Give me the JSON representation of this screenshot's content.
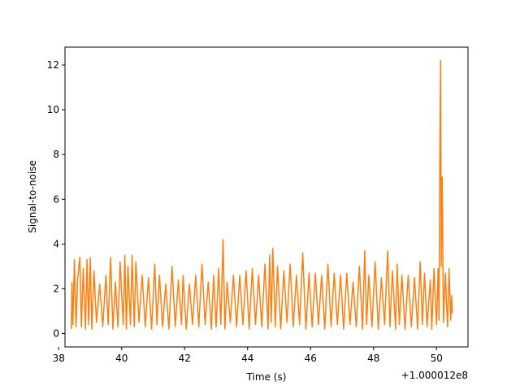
{
  "chart_data": {
    "type": "line",
    "title": "",
    "xlabel": "Time (s)",
    "ylabel": "Signal-to-noise",
    "xlim": [
      38.2,
      51.0
    ],
    "ylim": [
      -0.6,
      12.8
    ],
    "x_offset_label": "+1.000012e8",
    "xticks": [
      38,
      40,
      42,
      44,
      46,
      48,
      50
    ],
    "yticks": [
      0,
      2,
      4,
      6,
      8,
      10,
      12
    ],
    "grid": false,
    "series": [
      {
        "color": "#ff7f0e",
        "points": [
          [
            38.4,
            0.2
          ],
          [
            38.42,
            2.3
          ],
          [
            38.45,
            0.4
          ],
          [
            38.5,
            3.3
          ],
          [
            38.55,
            0.3
          ],
          [
            38.6,
            2.4
          ],
          [
            38.67,
            3.4
          ],
          [
            38.72,
            0.3
          ],
          [
            38.78,
            2.9
          ],
          [
            38.85,
            0.2
          ],
          [
            38.9,
            3.3
          ],
          [
            38.95,
            0.4
          ],
          [
            39.0,
            3.4
          ],
          [
            39.05,
            0.2
          ],
          [
            39.12,
            2.8
          ],
          [
            39.2,
            0.5
          ],
          [
            39.3,
            2.2
          ],
          [
            39.4,
            0.3
          ],
          [
            39.5,
            2.6
          ],
          [
            39.57,
            0.4
          ],
          [
            39.65,
            3.4
          ],
          [
            39.72,
            0.2
          ],
          [
            39.8,
            2.3
          ],
          [
            39.88,
            0.3
          ],
          [
            39.95,
            3.2
          ],
          [
            40.05,
            0.4
          ],
          [
            40.1,
            3.5
          ],
          [
            40.15,
            0.2
          ],
          [
            40.2,
            3.0
          ],
          [
            40.28,
            0.4
          ],
          [
            40.33,
            3.5
          ],
          [
            40.4,
            0.3
          ],
          [
            40.45,
            3.2
          ],
          [
            40.55,
            0.5
          ],
          [
            40.65,
            2.6
          ],
          [
            40.75,
            0.3
          ],
          [
            40.85,
            2.5
          ],
          [
            40.95,
            0.2
          ],
          [
            41.05,
            3.1
          ],
          [
            41.12,
            0.4
          ],
          [
            41.2,
            2.6
          ],
          [
            41.3,
            0.3
          ],
          [
            41.4,
            2.2
          ],
          [
            41.5,
            0.2
          ],
          [
            41.6,
            3.0
          ],
          [
            41.7,
            0.3
          ],
          [
            41.8,
            2.4
          ],
          [
            41.9,
            0.4
          ],
          [
            41.95,
            2.6
          ],
          [
            42.05,
            0.2
          ],
          [
            42.15,
            2.2
          ],
          [
            42.25,
            0.4
          ],
          [
            42.35,
            2.6
          ],
          [
            42.45,
            0.3
          ],
          [
            42.55,
            3.1
          ],
          [
            42.65,
            0.4
          ],
          [
            42.75,
            2.3
          ],
          [
            42.85,
            0.2
          ],
          [
            42.92,
            2.6
          ],
          [
            43.0,
            0.3
          ],
          [
            43.08,
            2.9
          ],
          [
            43.15,
            0.4
          ],
          [
            43.22,
            4.2
          ],
          [
            43.28,
            0.2
          ],
          [
            43.35,
            2.3
          ],
          [
            43.45,
            0.5
          ],
          [
            43.55,
            2.6
          ],
          [
            43.65,
            0.3
          ],
          [
            43.75,
            2.6
          ],
          [
            43.85,
            0.4
          ],
          [
            43.95,
            2.8
          ],
          [
            44.05,
            0.2
          ],
          [
            44.15,
            2.9
          ],
          [
            44.25,
            0.4
          ],
          [
            44.35,
            2.6
          ],
          [
            44.45,
            0.3
          ],
          [
            44.55,
            3.1
          ],
          [
            44.65,
            0.2
          ],
          [
            44.7,
            3.5
          ],
          [
            44.75,
            0.5
          ],
          [
            44.8,
            3.8
          ],
          [
            44.88,
            0.3
          ],
          [
            44.95,
            3.0
          ],
          [
            45.05,
            0.2
          ],
          [
            45.15,
            2.8
          ],
          [
            45.25,
            0.5
          ],
          [
            45.35,
            3.1
          ],
          [
            45.45,
            0.3
          ],
          [
            45.55,
            2.6
          ],
          [
            45.65,
            0.4
          ],
          [
            45.75,
            3.6
          ],
          [
            45.85,
            0.2
          ],
          [
            45.95,
            2.7
          ],
          [
            46.05,
            0.3
          ],
          [
            46.15,
            2.7
          ],
          [
            46.25,
            0.4
          ],
          [
            46.35,
            2.6
          ],
          [
            46.45,
            0.2
          ],
          [
            46.55,
            3.1
          ],
          [
            46.65,
            0.3
          ],
          [
            46.75,
            2.7
          ],
          [
            46.85,
            0.4
          ],
          [
            46.95,
            2.6
          ],
          [
            47.05,
            0.2
          ],
          [
            47.15,
            2.7
          ],
          [
            47.25,
            0.4
          ],
          [
            47.35,
            2.3
          ],
          [
            47.45,
            0.3
          ],
          [
            47.55,
            3.0
          ],
          [
            47.65,
            0.2
          ],
          [
            47.72,
            3.7
          ],
          [
            47.78,
            0.4
          ],
          [
            47.85,
            2.6
          ],
          [
            47.95,
            0.3
          ],
          [
            48.05,
            3.2
          ],
          [
            48.15,
            0.2
          ],
          [
            48.25,
            2.5
          ],
          [
            48.35,
            0.4
          ],
          [
            48.45,
            3.7
          ],
          [
            48.52,
            0.3
          ],
          [
            48.6,
            2.8
          ],
          [
            48.7,
            0.2
          ],
          [
            48.75,
            3.1
          ],
          [
            48.82,
            0.4
          ],
          [
            48.9,
            2.6
          ],
          [
            49.0,
            0.2
          ],
          [
            49.1,
            2.6
          ],
          [
            49.2,
            0.3
          ],
          [
            49.3,
            2.5
          ],
          [
            49.4,
            0.2
          ],
          [
            49.48,
            3.2
          ],
          [
            49.55,
            0.4
          ],
          [
            49.62,
            2.7
          ],
          [
            49.7,
            0.3
          ],
          [
            49.8,
            2.4
          ],
          [
            49.85,
            0.2
          ],
          [
            49.92,
            2.9
          ],
          [
            50.0,
            0.4
          ],
          [
            50.05,
            2.9
          ],
          [
            50.08,
            0.6
          ],
          [
            50.1,
            6.9
          ],
          [
            50.13,
            12.2
          ],
          [
            50.15,
            3.0
          ],
          [
            50.18,
            7.0
          ],
          [
            50.22,
            0.5
          ],
          [
            50.28,
            2.7
          ],
          [
            50.35,
            0.3
          ],
          [
            50.4,
            2.9
          ],
          [
            50.45,
            0.6
          ],
          [
            50.48,
            1.7
          ],
          [
            50.5,
            0.9
          ]
        ]
      }
    ]
  }
}
